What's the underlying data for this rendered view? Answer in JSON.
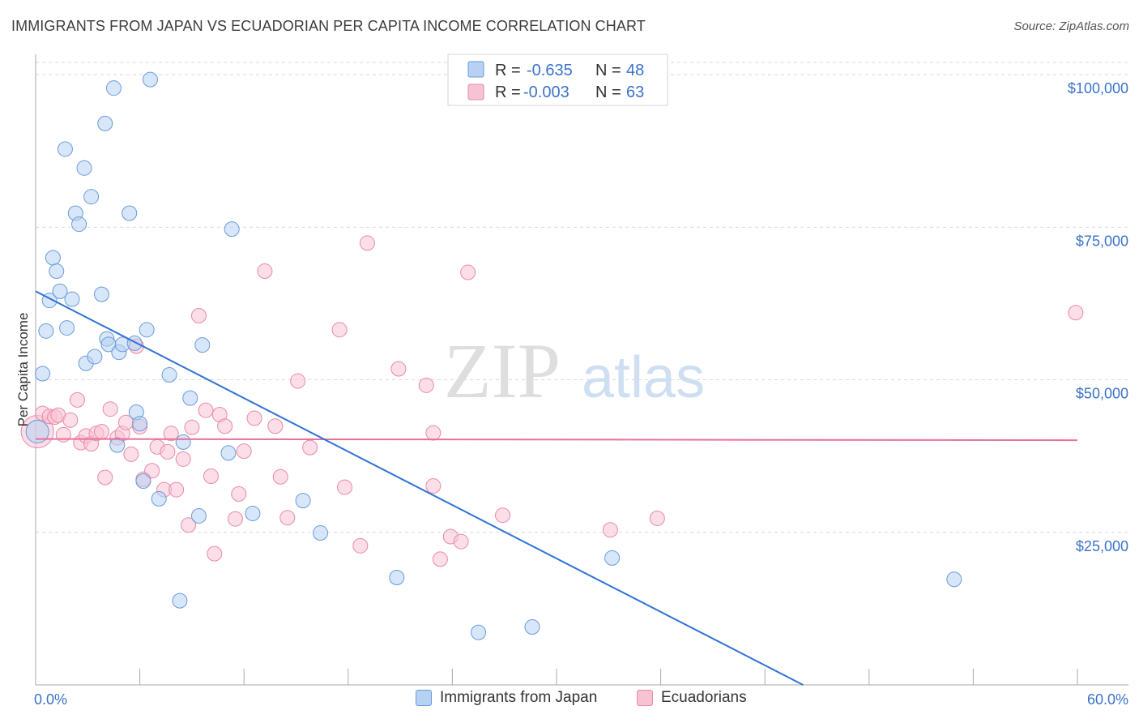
{
  "title": "IMMIGRANTS FROM JAPAN VS ECUADORIAN PER CAPITA INCOME CORRELATION CHART",
  "source": "Source: ZipAtlas.com",
  "watermark": {
    "zip": "ZIP",
    "atlas": "atlas"
  },
  "colors": {
    "blue_fill": "#b7d1f2",
    "blue_stroke": "#6a9bd8",
    "blue_line": "#2f72d6",
    "pink_fill": "#f7c3d3",
    "pink_stroke": "#e98aa8",
    "pink_line": "#e8709a",
    "axis_label": "#3a73c9",
    "grid": "#d9d9d9"
  },
  "legend": {
    "rows": [
      {
        "r_label": "R =",
        "r_value": "-0.635",
        "n_label": "N =",
        "n_value": "48"
      },
      {
        "r_label": "R =",
        "r_value": "-0.003",
        "n_label": "N =",
        "n_value": "63"
      }
    ]
  },
  "bottom_legend": {
    "series1": "Immigrants from Japan",
    "series2": "Ecuadorians"
  },
  "chart_data": {
    "type": "scatter",
    "ylabel": "Per Capita Income",
    "x_tick_labels": [
      "0.0%",
      "60.0%"
    ],
    "y_tick_labels": [
      "$25,000",
      "$50,000",
      "$75,000",
      "$100,000"
    ],
    "xlim": [
      0,
      60
    ],
    "ylim": [
      0,
      104000
    ],
    "y_ticks": [
      25000,
      50000,
      75000,
      100000
    ],
    "grid": "horizontal dashed",
    "series": [
      {
        "name": "Immigrants from Japan",
        "trend": {
          "x": [
            0,
            44.2
          ],
          "y": [
            64500,
            0
          ]
        },
        "points": [
          [
            0.1,
            41500,
            28
          ],
          [
            0.4,
            51000,
            18
          ],
          [
            0.6,
            58000,
            18
          ],
          [
            0.8,
            63000,
            18
          ],
          [
            1.0,
            70000,
            18
          ],
          [
            1.2,
            67800,
            18
          ],
          [
            1.4,
            64500,
            18
          ],
          [
            1.8,
            58500,
            18
          ],
          [
            1.7,
            87800,
            18
          ],
          [
            2.1,
            63200,
            18
          ],
          [
            2.3,
            77300,
            18
          ],
          [
            2.5,
            75500,
            18
          ],
          [
            2.8,
            84700,
            18
          ],
          [
            2.9,
            52700,
            18
          ],
          [
            3.2,
            80000,
            18
          ],
          [
            3.4,
            53800,
            18
          ],
          [
            3.8,
            64000,
            18
          ],
          [
            4.0,
            92000,
            18
          ],
          [
            4.1,
            56700,
            18
          ],
          [
            4.2,
            55800,
            18
          ],
          [
            4.5,
            97800,
            18
          ],
          [
            4.7,
            39300,
            18
          ],
          [
            4.8,
            54500,
            18
          ],
          [
            5.0,
            55800,
            18
          ],
          [
            5.4,
            77300,
            18
          ],
          [
            5.7,
            56000,
            18
          ],
          [
            5.8,
            44700,
            18
          ],
          [
            6.0,
            42800,
            18
          ],
          [
            6.2,
            33400,
            18
          ],
          [
            6.4,
            58200,
            18
          ],
          [
            6.6,
            99200,
            18
          ],
          [
            7.1,
            30500,
            18
          ],
          [
            7.7,
            50800,
            18
          ],
          [
            8.3,
            13800,
            18
          ],
          [
            8.5,
            39800,
            18
          ],
          [
            9.4,
            27700,
            18
          ],
          [
            9.6,
            55700,
            18
          ],
          [
            11.3,
            74700,
            18
          ],
          [
            11.1,
            38000,
            18
          ],
          [
            12.5,
            28100,
            18
          ],
          [
            15.4,
            30200,
            18
          ],
          [
            16.4,
            24900,
            18
          ],
          [
            20.8,
            17600,
            18
          ],
          [
            25.5,
            8600,
            18
          ],
          [
            28.6,
            9500,
            18
          ],
          [
            33.2,
            20800,
            18
          ],
          [
            52.9,
            17300,
            18
          ],
          [
            8.9,
            47000,
            18
          ]
        ]
      },
      {
        "name": "Ecuadorians",
        "trend": {
          "x": [
            0,
            60
          ],
          "y": [
            40300,
            40100
          ]
        },
        "points": [
          [
            0.1,
            41500,
            40
          ],
          [
            0.4,
            44500,
            18
          ],
          [
            0.8,
            44000,
            18
          ],
          [
            1.1,
            43900,
            18
          ],
          [
            1.3,
            44200,
            18
          ],
          [
            1.6,
            41000,
            18
          ],
          [
            2.0,
            43400,
            18
          ],
          [
            2.4,
            46700,
            18
          ],
          [
            2.6,
            39700,
            18
          ],
          [
            2.9,
            40800,
            18
          ],
          [
            3.2,
            39500,
            18
          ],
          [
            3.5,
            41200,
            18
          ],
          [
            3.8,
            41500,
            18
          ],
          [
            4.0,
            34000,
            18
          ],
          [
            4.3,
            45200,
            18
          ],
          [
            4.7,
            40500,
            18
          ],
          [
            5.0,
            41200,
            18
          ],
          [
            5.2,
            43000,
            18
          ],
          [
            5.5,
            37800,
            18
          ],
          [
            5.8,
            55500,
            18
          ],
          [
            6.0,
            42300,
            18
          ],
          [
            6.2,
            33700,
            18
          ],
          [
            6.7,
            35100,
            18
          ],
          [
            7.0,
            39000,
            18
          ],
          [
            7.4,
            32000,
            18
          ],
          [
            7.6,
            38200,
            18
          ],
          [
            7.8,
            41200,
            18
          ],
          [
            8.1,
            32000,
            18
          ],
          [
            8.5,
            37000,
            18
          ],
          [
            8.8,
            26200,
            18
          ],
          [
            9.0,
            42200,
            18
          ],
          [
            9.4,
            60500,
            18
          ],
          [
            9.8,
            45000,
            18
          ],
          [
            10.1,
            34200,
            18
          ],
          [
            10.3,
            21500,
            18
          ],
          [
            10.6,
            44300,
            18
          ],
          [
            10.9,
            42400,
            18
          ],
          [
            11.5,
            27200,
            18
          ],
          [
            11.7,
            31300,
            18
          ],
          [
            12.0,
            38300,
            18
          ],
          [
            12.6,
            43700,
            18
          ],
          [
            13.2,
            67800,
            18
          ],
          [
            13.8,
            42400,
            18
          ],
          [
            14.1,
            34100,
            18
          ],
          [
            14.5,
            27400,
            18
          ],
          [
            15.1,
            49800,
            18
          ],
          [
            15.8,
            38900,
            18
          ],
          [
            17.5,
            58200,
            18
          ],
          [
            17.8,
            32400,
            18
          ],
          [
            18.7,
            22800,
            18
          ],
          [
            19.1,
            72400,
            18
          ],
          [
            20.9,
            51800,
            18
          ],
          [
            22.5,
            49100,
            18
          ],
          [
            22.9,
            41300,
            18
          ],
          [
            22.9,
            32600,
            18
          ],
          [
            23.3,
            20600,
            18
          ],
          [
            23.9,
            24300,
            18
          ],
          [
            24.5,
            23500,
            18
          ],
          [
            24.9,
            67600,
            18
          ],
          [
            26.9,
            27800,
            18
          ],
          [
            33.1,
            25400,
            18
          ],
          [
            35.8,
            27300,
            18
          ],
          [
            59.9,
            61000,
            18
          ]
        ]
      }
    ]
  }
}
